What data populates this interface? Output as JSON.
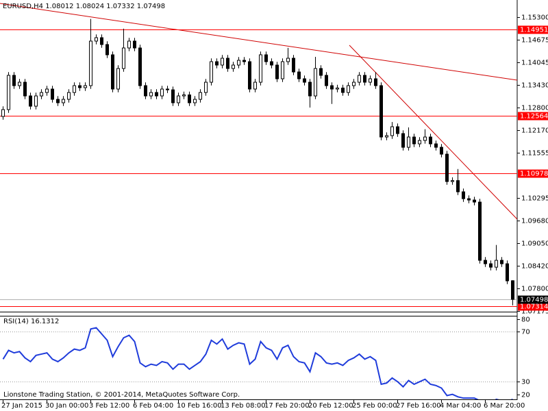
{
  "chart_data": {
    "type": "candlestick",
    "title": "EURUSD,H4  1.08012 1.08024 1.07332 1.07498",
    "categories": [
      "27 Jan 2015",
      null,
      null,
      null,
      null,
      null,
      null,
      null,
      "30 Jan 00:00",
      null,
      null,
      null,
      null,
      null,
      null,
      null,
      "3 Feb 12:00",
      null,
      null,
      null,
      null,
      null,
      null,
      null,
      "6 Feb 04:00",
      null,
      null,
      null,
      null,
      null,
      null,
      null,
      "10 Feb 16:00",
      null,
      null,
      null,
      null,
      null,
      null,
      null,
      "13 Feb 08:00",
      null,
      null,
      null,
      null,
      null,
      null,
      null,
      "17 Feb 20:00",
      null,
      null,
      null,
      null,
      null,
      null,
      null,
      "20 Feb 12:00",
      null,
      null,
      null,
      null,
      null,
      null,
      null,
      "25 Feb 00:00",
      null,
      null,
      null,
      null,
      null,
      null,
      null,
      "27 Feb 16:00",
      null,
      null,
      null,
      null,
      null,
      null,
      null,
      "4 Mar 04:00",
      null,
      null,
      null,
      null,
      null,
      null,
      null,
      "6 Mar 20:00",
      null,
      null,
      null,
      null,
      null
    ],
    "open": [
      1.12553,
      1.12743,
      1.1369,
      1.13405,
      1.135,
      1.13121,
      1.12837,
      1.13121,
      1.13216,
      1.13311,
      1.13027,
      1.12932,
      1.13027,
      1.13216,
      1.13405,
      1.13349,
      1.13405,
      1.14637,
      1.14731,
      1.14542,
      1.14258,
      1.13311,
      1.13879,
      1.14447,
      1.14637,
      1.14447,
      1.13405,
      1.13121,
      1.13216,
      1.13121,
      1.13311,
      1.1329,
      1.12932,
      1.13121,
      1.1315,
      1.12932,
      1.13027,
      1.13216,
      1.135,
      1.14068,
      1.13974,
      1.14163,
      1.13879,
      1.13974,
      1.14106,
      1.14068,
      1.13311,
      1.135,
      1.14258,
      1.14068,
      1.13974,
      1.13595,
      1.14068,
      1.14163,
      1.13784,
      1.13595,
      1.135,
      1.13121,
      1.13879,
      1.1369,
      1.13405,
      1.13311,
      1.1334,
      1.13216,
      1.13405,
      1.135,
      1.1369,
      1.135,
      1.13595,
      1.13405,
      1.11985,
      1.12023,
      1.12269,
      1.1208,
      1.11701,
      1.11985,
      1.11796,
      1.1189,
      1.11985,
      1.11796,
      1.11701,
      1.11511,
      1.10754,
      1.1078,
      1.1047,
      1.1028,
      1.10243,
      1.10186,
      1.08576,
      1.08481,
      1.08386,
      1.08576,
      1.08481,
      1.08012
    ],
    "high": [
      1.12833,
      1.1378,
      1.1378,
      1.1359,
      1.1359,
      1.13211,
      1.13211,
      1.13306,
      1.13401,
      1.13401,
      1.13117,
      1.13117,
      1.13306,
      1.13495,
      1.13495,
      1.13495,
      1.1525,
      1.14821,
      1.14821,
      1.14632,
      1.14348,
      1.13969,
      1.1498,
      1.14727,
      1.14727,
      1.14537,
      1.13495,
      1.13306,
      1.13306,
      1.13401,
      1.13401,
      1.1338,
      1.13211,
      1.1324,
      1.1324,
      1.13117,
      1.13306,
      1.1359,
      1.14158,
      1.14158,
      1.14253,
      1.14253,
      1.14064,
      1.14196,
      1.14196,
      1.14158,
      1.1359,
      1.14348,
      1.14348,
      1.14158,
      1.14064,
      1.14158,
      1.1445,
      1.14253,
      1.13874,
      1.13685,
      1.1359,
      1.142,
      1.13969,
      1.1378,
      1.13495,
      1.1343,
      1.1343,
      1.13495,
      1.1359,
      1.1378,
      1.1378,
      1.13685,
      1.1378,
      1.13495,
      1.12113,
      1.124,
      1.12359,
      1.1217,
      1.1225,
      1.12075,
      1.1198,
      1.122,
      1.12075,
      1.11886,
      1.11791,
      1.11601,
      1.1087,
      1.111,
      1.1056,
      1.1037,
      1.10333,
      1.10276,
      1.08666,
      1.08571,
      1.09,
      1.08666,
      1.08571,
      1.08024
    ],
    "low": [
      1.12463,
      1.12653,
      1.13315,
      1.13315,
      1.13031,
      1.12747,
      1.12747,
      1.13031,
      1.13126,
      1.12937,
      1.12842,
      1.12842,
      1.12937,
      1.13126,
      1.13259,
      1.13259,
      1.13315,
      1.14547,
      1.14452,
      1.14168,
      1.13221,
      1.13221,
      1.13789,
      1.14357,
      1.14357,
      1.13315,
      1.13031,
      1.13031,
      1.13031,
      1.13031,
      1.132,
      1.12842,
      1.12842,
      1.13031,
      1.12842,
      1.12842,
      1.12937,
      1.13126,
      1.1341,
      1.13884,
      1.13884,
      1.13789,
      1.13789,
      1.13884,
      1.13978,
      1.13221,
      1.13221,
      1.1341,
      1.13978,
      1.13884,
      1.13505,
      1.13505,
      1.13978,
      1.13694,
      1.13505,
      1.1341,
      1.128,
      1.13031,
      1.136,
      1.13315,
      1.129,
      1.13221,
      1.13126,
      1.13126,
      1.13315,
      1.1341,
      1.1341,
      1.1341,
      1.13315,
      1.11895,
      1.11895,
      1.11933,
      1.1199,
      1.11611,
      1.11611,
      1.11706,
      1.11706,
      1.118,
      1.11706,
      1.11611,
      1.11421,
      1.10664,
      1.10664,
      1.1038,
      1.1019,
      1.10153,
      1.10096,
      1.08486,
      1.08391,
      1.08296,
      1.08296,
      1.08391,
      1.07918,
      1.07332
    ],
    "close": [
      1.12743,
      1.1369,
      1.13405,
      1.135,
      1.13121,
      1.12837,
      1.13121,
      1.13216,
      1.13311,
      1.13027,
      1.12932,
      1.13027,
      1.13216,
      1.13405,
      1.13349,
      1.13405,
      1.14637,
      1.14731,
      1.14542,
      1.14258,
      1.13311,
      1.13879,
      1.14447,
      1.14637,
      1.14447,
      1.13405,
      1.13121,
      1.13216,
      1.13121,
      1.13311,
      1.1329,
      1.12932,
      1.13121,
      1.1315,
      1.12932,
      1.13027,
      1.13216,
      1.135,
      1.14068,
      1.13974,
      1.14163,
      1.13879,
      1.13974,
      1.14106,
      1.14068,
      1.13311,
      1.135,
      1.14258,
      1.14068,
      1.13974,
      1.13595,
      1.14068,
      1.14163,
      1.13784,
      1.13595,
      1.135,
      1.13121,
      1.13879,
      1.1369,
      1.13405,
      1.13311,
      1.1334,
      1.13216,
      1.13405,
      1.135,
      1.1369,
      1.135,
      1.13595,
      1.13405,
      1.11985,
      1.12023,
      1.12269,
      1.1208,
      1.11701,
      1.11985,
      1.11796,
      1.1189,
      1.11985,
      1.11796,
      1.11701,
      1.11511,
      1.10754,
      1.1078,
      1.1047,
      1.1028,
      1.10243,
      1.10186,
      1.08576,
      1.08481,
      1.08386,
      1.08576,
      1.08481,
      1.08008,
      1.07498
    ],
    "color": "#000000",
    "ylim": [
      1.07156,
      1.15773
    ],
    "yticks": [
      {
        "value": 1.153,
        "label": "1.15300"
      },
      1.14675,
      1.14045,
      {
        "value": 1.1343,
        "label": "1.13430"
      },
      {
        "value": 1.128,
        "label": "1.12800"
      },
      {
        "value": 1.1217,
        "label": "1.12170"
      },
      1.11555,
      1.10295,
      {
        "value": 1.0968,
        "label": "1.09680"
      },
      {
        "value": 1.0905,
        "label": "1.09050"
      },
      {
        "value": 1.0842,
        "label": "1.08420"
      },
      {
        "value": 1.078,
        "label": "1.07800"
      },
      1.07175
    ],
    "levels": [
      1.14951,
      1.12564,
      1.10978,
      1.07314
    ],
    "level_color": "#ff0000",
    "bid": 1.07498,
    "indicator": {
      "type": "line",
      "name": "RSI(14)",
      "color": "#1f3cdb",
      "values": [
        48,
        55,
        53,
        54,
        49,
        46,
        51,
        52,
        53,
        48,
        46,
        49,
        53,
        56,
        55,
        57,
        72,
        73,
        68,
        63,
        50,
        58,
        65,
        67,
        62,
        45,
        42,
        44,
        43,
        46,
        45,
        40,
        44,
        44,
        40,
        43,
        46,
        52,
        63,
        60,
        64,
        56,
        59,
        61,
        60,
        44,
        48,
        62,
        57,
        55,
        48,
        57,
        59,
        50,
        46,
        45,
        38,
        53,
        50,
        45,
        44,
        45,
        43,
        47,
        49,
        52,
        48,
        50,
        47,
        28,
        29,
        33,
        30,
        26,
        31,
        28,
        30,
        32,
        28,
        27,
        25,
        19,
        20,
        18,
        17,
        17,
        17,
        15,
        14,
        13,
        16,
        15,
        14,
        16.1312
      ],
      "ylim": [
        16,
        82.5
      ],
      "yticks": [
        80,
        70,
        30,
        20
      ],
      "levels": [
        70,
        30
      ]
    },
    "footer": "Lionstone Trading Station, © 2001-2014, MetaQuotes Software Corp."
  }
}
